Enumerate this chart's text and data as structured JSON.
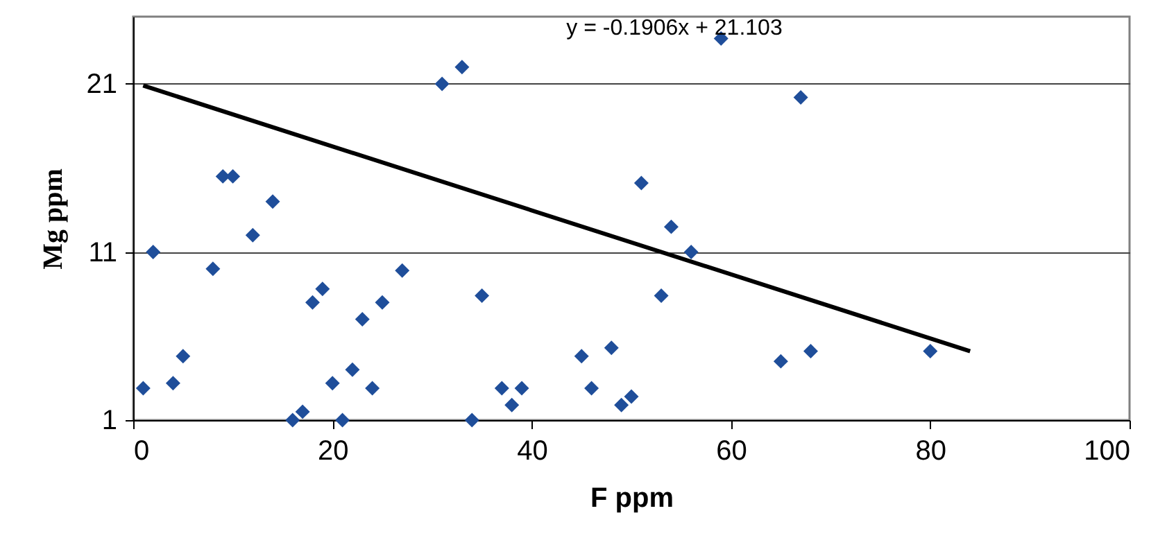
{
  "chart_data": {
    "type": "scatter",
    "xlabel": "F ppm",
    "ylabel": "Mg ppm",
    "annotations": [
      "y = -0.1906x + 21.103"
    ],
    "xlim": [
      0,
      100
    ],
    "xticks": [
      0,
      20,
      40,
      60,
      80,
      100
    ],
    "ylim": [
      1,
      25
    ],
    "yticks": [
      1,
      11,
      21
    ],
    "grid": "y",
    "series": [
      {
        "marker": "diamond",
        "color": "#1f4e9a",
        "x": [
          1,
          2,
          4,
          5,
          8,
          9,
          10,
          12,
          14,
          16,
          17,
          18,
          19,
          20,
          21,
          22,
          23,
          24,
          25,
          27,
          31,
          33,
          34,
          35,
          37,
          38,
          39,
          45,
          46,
          48,
          49,
          50,
          51,
          53,
          54,
          56,
          59,
          65,
          67,
          68,
          80
        ],
        "values": [
          2.9,
          11,
          3.2,
          4.8,
          10,
          15.5,
          15.5,
          12,
          14,
          1,
          1.5,
          8,
          8.8,
          3.2,
          1,
          4,
          7,
          2.9,
          8,
          9.9,
          21,
          22,
          1,
          8.4,
          2.9,
          1.9,
          2.9,
          4.8,
          2.9,
          5.3,
          1.9,
          2.4,
          15.1,
          8.4,
          12.5,
          11,
          23.7,
          4.5,
          20.2,
          5.1,
          5.1
        ]
      },
      {
        "type": "line",
        "color": "#000000",
        "x": [
          1,
          84
        ],
        "values": [
          20.9,
          5.1
        ]
      }
    ]
  }
}
